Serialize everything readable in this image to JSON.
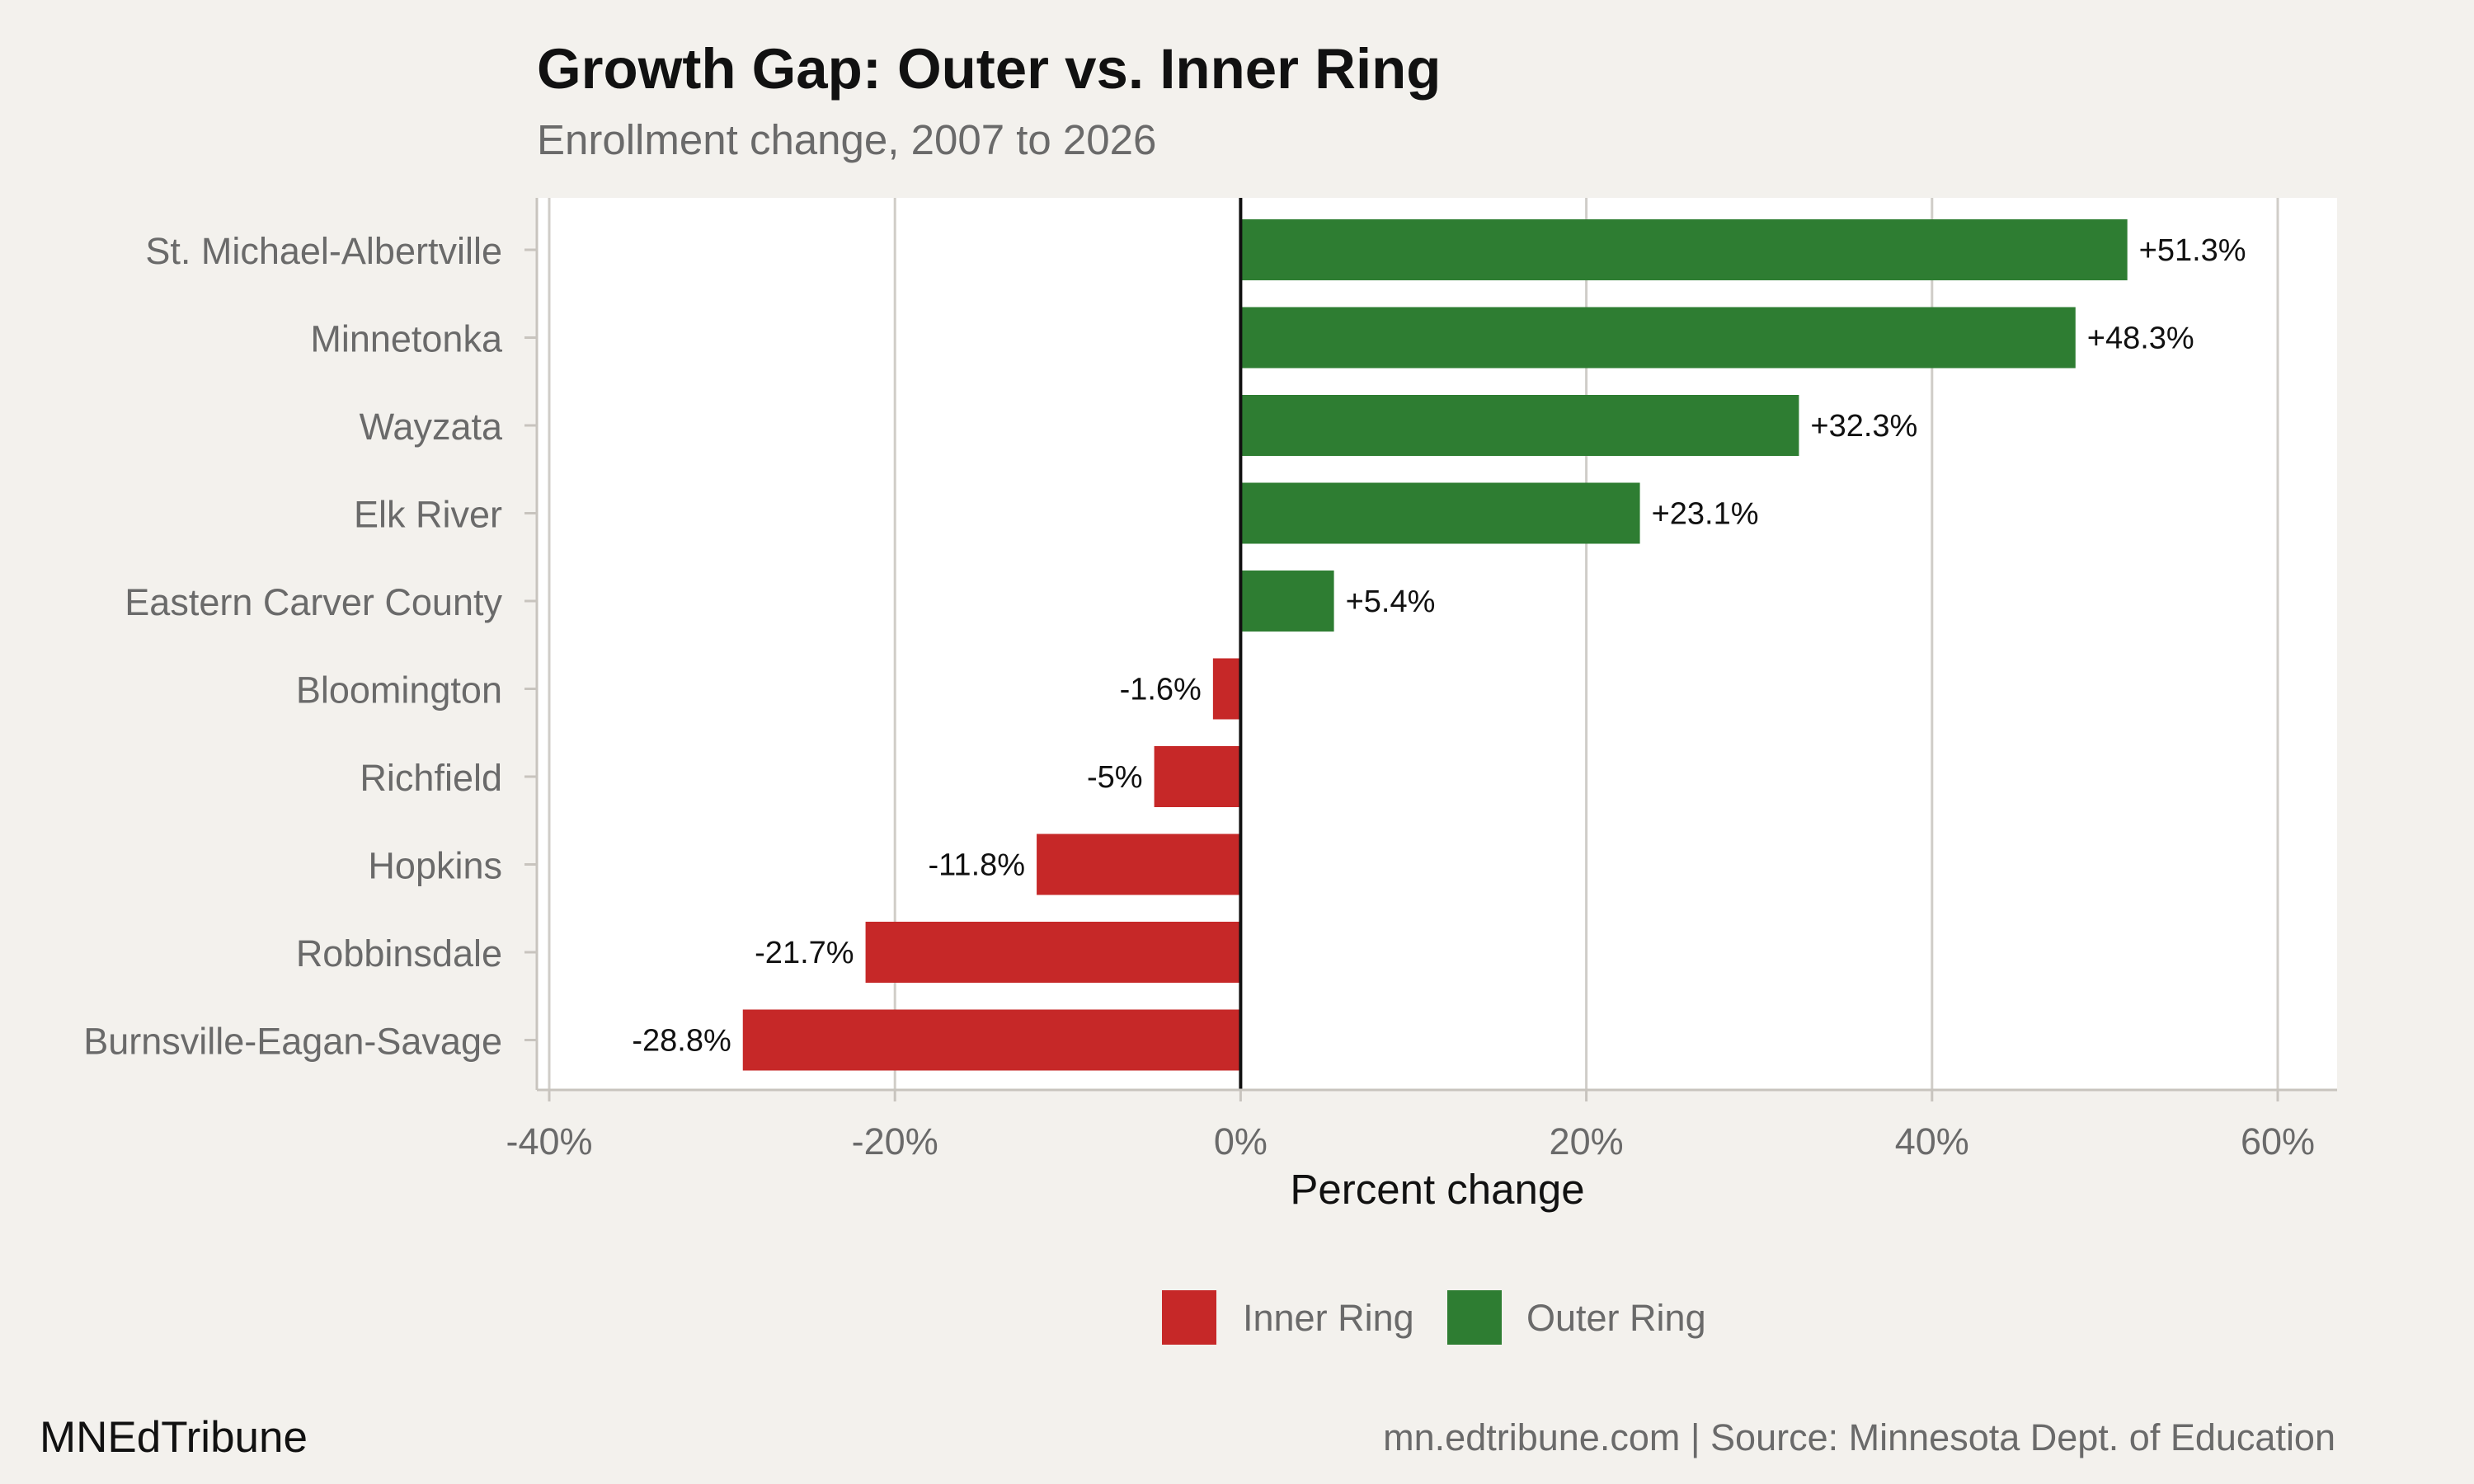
{
  "chart_data": {
    "type": "bar",
    "orientation": "horizontal",
    "title": "Growth Gap: Outer vs. Inner Ring",
    "subtitle": "Enrollment change, 2007 to 2026",
    "xlabel": "Percent change",
    "ylabel": "",
    "xlim": [
      -40,
      60
    ],
    "x_ticks": [
      -40,
      -20,
      0,
      20,
      40,
      60
    ],
    "x_tick_labels": [
      "-40%",
      "-20%",
      "0%",
      "20%",
      "40%",
      "60%"
    ],
    "grid": "vertical",
    "legend_position": "bottom",
    "categories": [
      "St. Michael-Albertville",
      "Minnetonka",
      "Wayzata",
      "Elk River",
      "Eastern Carver County",
      "Bloomington",
      "Richfield",
      "Hopkins",
      "Robbinsdale",
      "Burnsville-Eagan-Savage"
    ],
    "values": [
      51.3,
      48.3,
      32.3,
      23.1,
      5.4,
      -1.6,
      -5,
      -11.8,
      -21.7,
      -28.8
    ],
    "data_labels": [
      "+51.3%",
      "+48.3%",
      "+32.3%",
      "+23.1%",
      "+5.4%",
      "-1.6%",
      "-5%",
      "-11.8%",
      "-21.7%",
      "-28.8%"
    ],
    "groups": [
      "Outer Ring",
      "Outer Ring",
      "Outer Ring",
      "Outer Ring",
      "Outer Ring",
      "Inner Ring",
      "Inner Ring",
      "Inner Ring",
      "Inner Ring",
      "Inner Ring"
    ],
    "legend": [
      {
        "name": "Inner Ring",
        "color": "#c62828"
      },
      {
        "name": "Outer Ring",
        "color": "#2e7d32"
      }
    ]
  },
  "footer": {
    "brand": "MNEdTribune",
    "source": "mn.edtribune.com | Source: Minnesota Dept. of Education"
  }
}
